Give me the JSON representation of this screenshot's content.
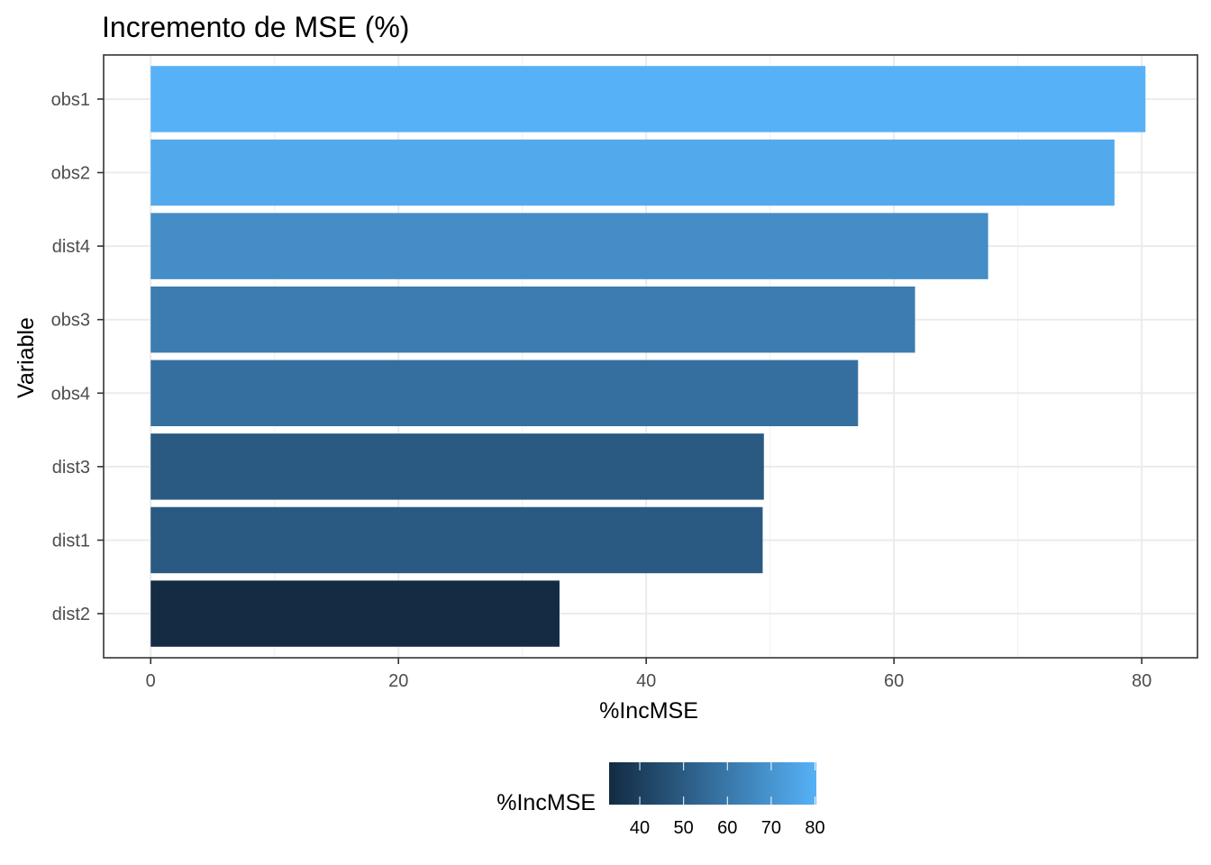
{
  "chart_data": {
    "type": "bar",
    "orientation": "horizontal",
    "title": "Incremento de MSE (%)",
    "xlabel": "%IncMSE",
    "ylabel": "Variable",
    "categories": [
      "obs1",
      "obs2",
      "dist4",
      "obs3",
      "obs4",
      "dist3",
      "dist1",
      "dist2"
    ],
    "values": [
      80.3,
      77.8,
      67.6,
      61.7,
      57.1,
      49.5,
      49.4,
      33.0
    ],
    "xlim": [
      -3.8,
      84.5
    ],
    "xticks": [
      0,
      20,
      40,
      60,
      80
    ],
    "grid": true,
    "color_scale": {
      "low": "#132B43",
      "high": "#56B1F7",
      "domain": [
        33.0,
        80.3
      ]
    },
    "legend": {
      "title": "%IncMSE",
      "position": "bottom",
      "ticks": [
        40,
        50,
        60,
        70,
        80
      ]
    }
  }
}
